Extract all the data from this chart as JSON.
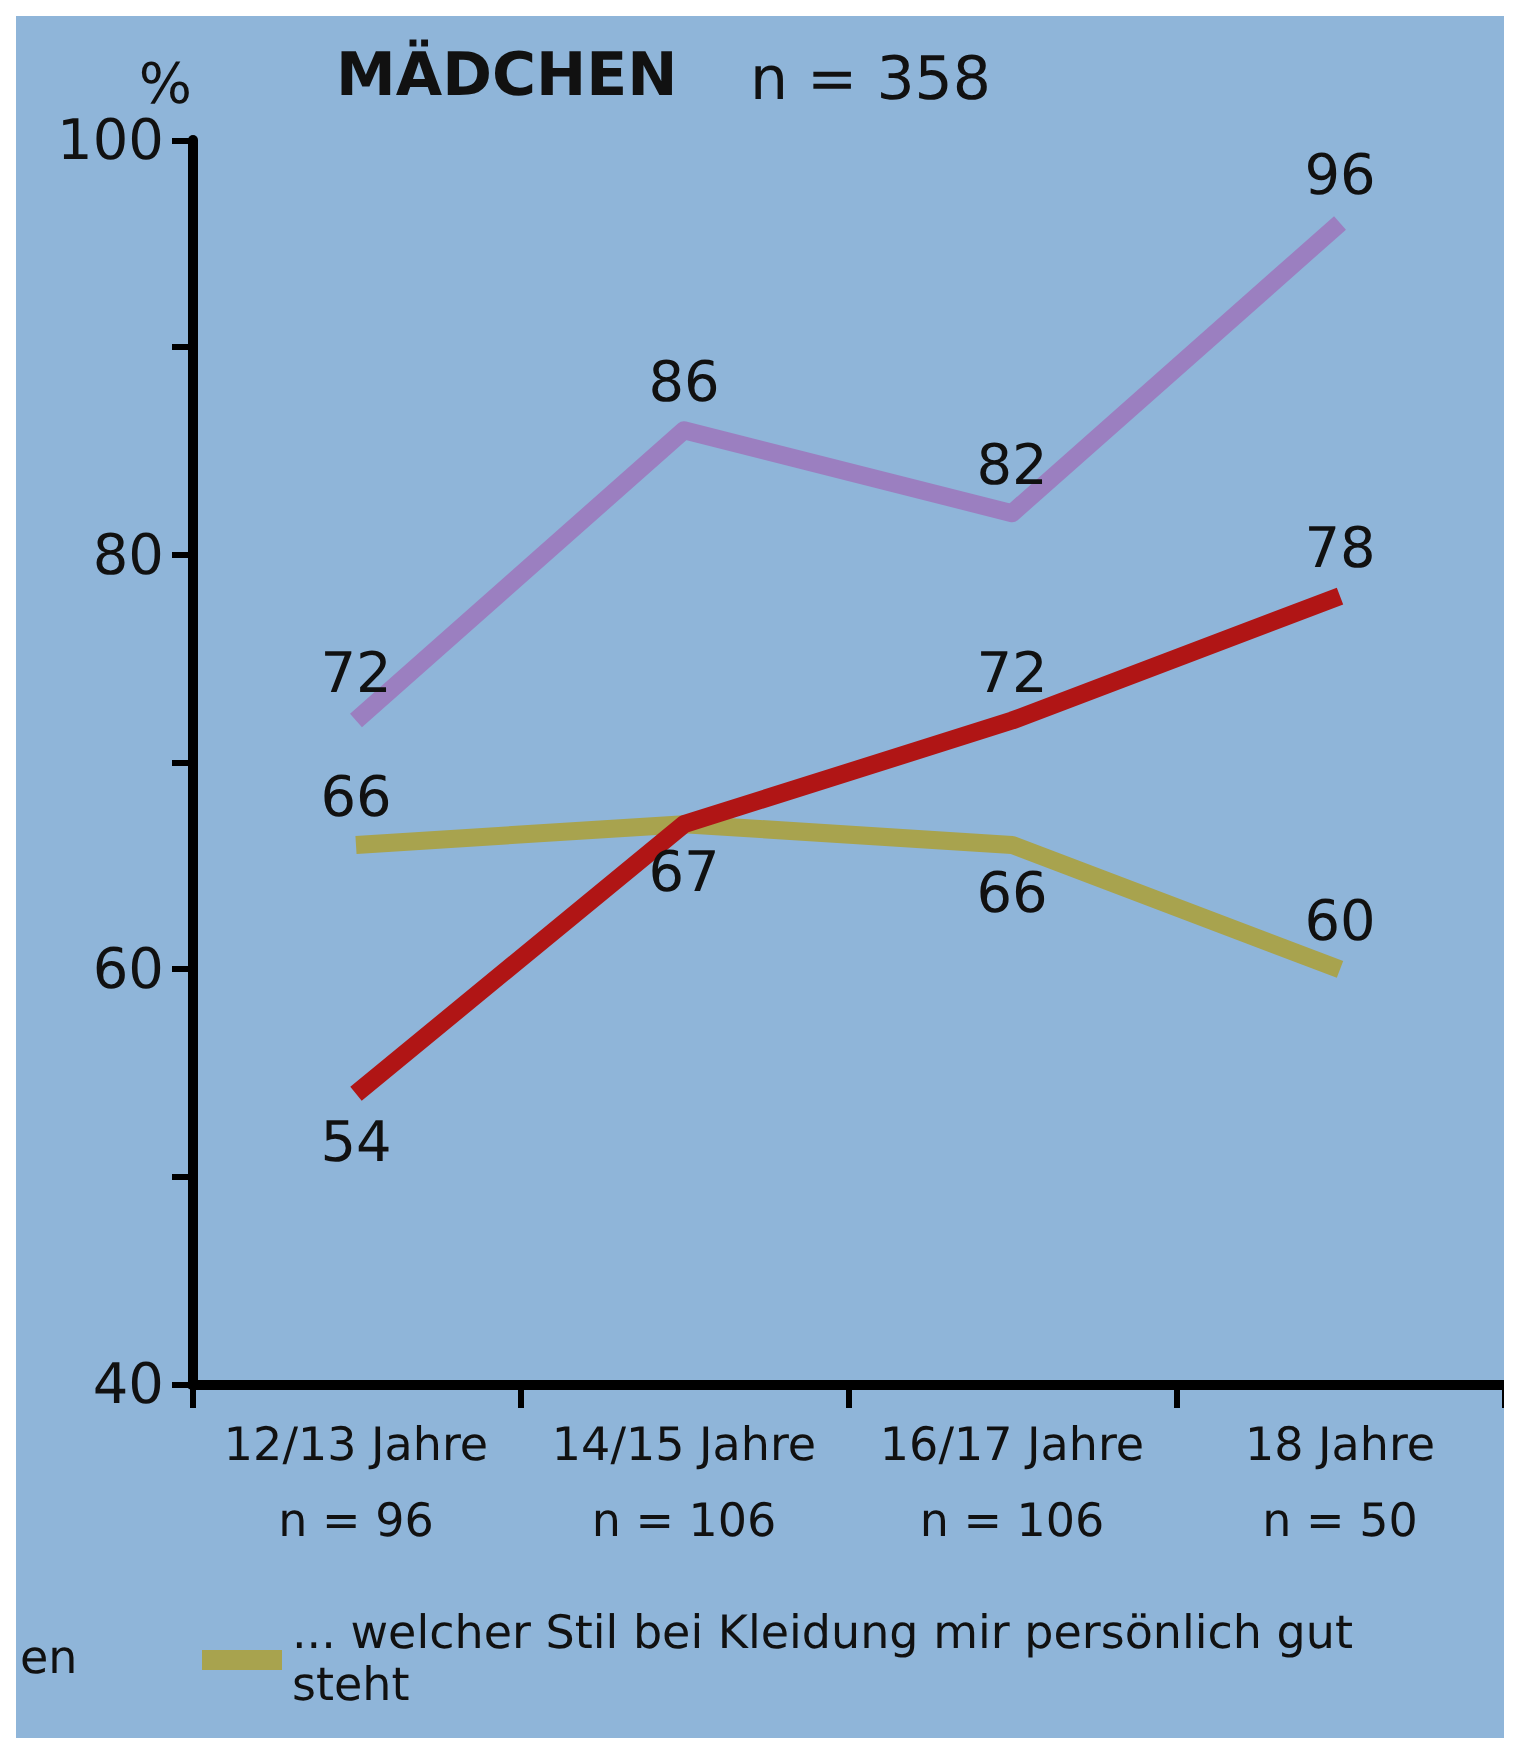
{
  "chart_data": {
    "type": "line",
    "title": "MÄDCHEN",
    "subtitle": "n = 358",
    "ylabel": "%",
    "categories": [
      "12/13 Jahre\nn = 96",
      "14/15 Jahre\nn = 106",
      "16/17 Jahre\nn = 106",
      "18 Jahre\nn = 50"
    ],
    "series": [
      {
        "color": "#9b7fc0",
        "values": [
          72,
          86,
          82,
          96
        ],
        "value_labels": [
          "72",
          "86",
          "82",
          "96"
        ]
      },
      {
        "color": "#b01515",
        "values": [
          54,
          67,
          72,
          78
        ],
        "value_labels": [
          "54",
          "67",
          "72",
          "78"
        ]
      },
      {
        "name": "... welcher Stil bei Kleidung mir persönlich gut steht",
        "color": "#a8a34e",
        "values": [
          66,
          67,
          66,
          60
        ],
        "value_labels": [
          "66",
          null,
          "66",
          "60"
        ]
      }
    ],
    "ylim": [
      40,
      100
    ],
    "yticks": [
      40,
      {
        "value": 50,
        "label": null
      },
      60,
      {
        "value": 70,
        "label": null
      },
      80,
      {
        "value": 90,
        "label": null
      },
      100
    ],
    "annotations": [
      "en"
    ],
    "legend": "bottom",
    "grid": false,
    "marker": "none",
    "line_style": "solid"
  }
}
